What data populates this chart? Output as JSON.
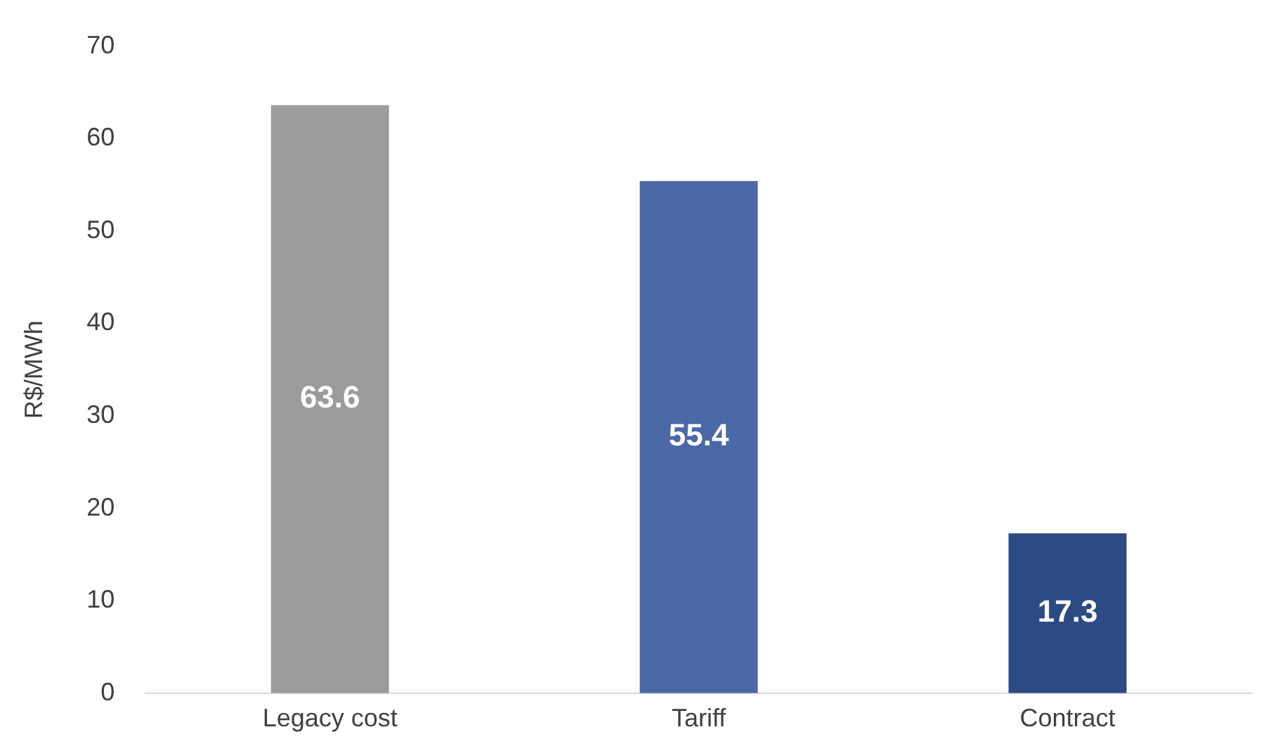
{
  "chart_data": {
    "type": "bar",
    "ylabel": "R$/MWh",
    "categories": [
      "Legacy cost",
      "Tariff",
      "Contract"
    ],
    "values": [
      63.6,
      55.4,
      17.3
    ],
    "colors": [
      "#9b9b9b",
      "#4a68a6",
      "#2c4a84"
    ],
    "ylim": [
      0,
      70
    ],
    "yticks": [
      0,
      10,
      20,
      30,
      40,
      50,
      60,
      70
    ],
    "grid": false,
    "legend": false,
    "data_labels": true
  }
}
